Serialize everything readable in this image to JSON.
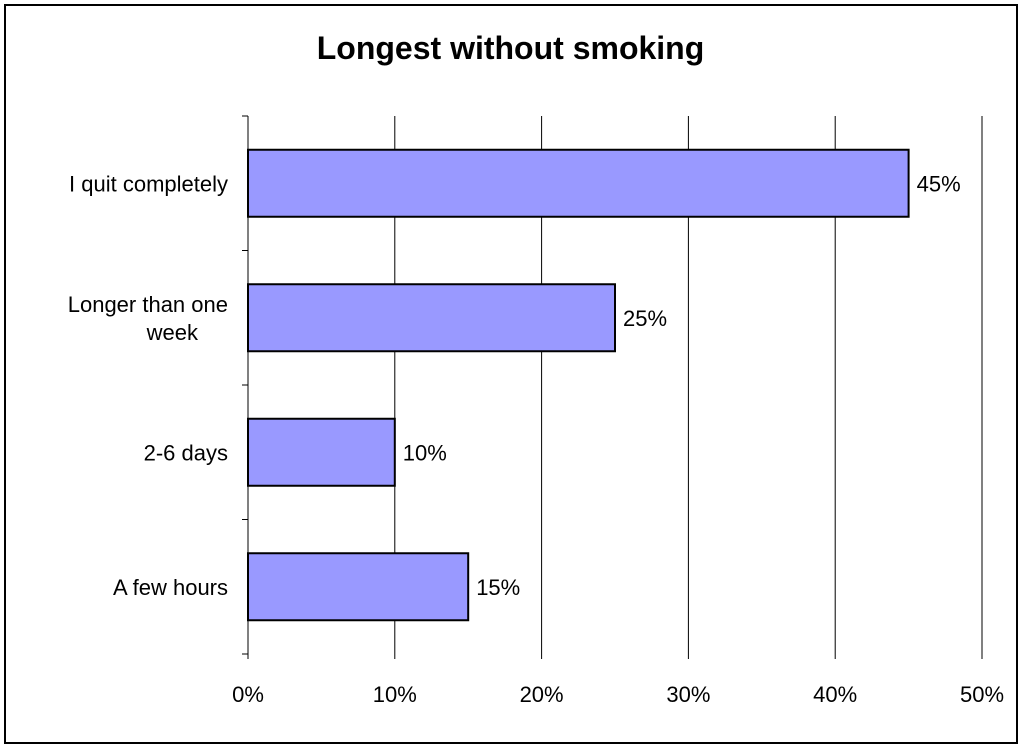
{
  "chart_data": {
    "type": "bar",
    "orientation": "horizontal",
    "title": "Longest without smoking",
    "categories": [
      "I quit completely",
      "Longer than one week",
      "2-6 days",
      "A few hours"
    ],
    "values": [
      45,
      25,
      10,
      15
    ],
    "data_labels": [
      "45%",
      "25%",
      "10%",
      "15%"
    ],
    "xlim": [
      0,
      50
    ],
    "x_ticks": [
      0,
      10,
      20,
      30,
      40,
      50
    ],
    "x_tick_labels": [
      "0%",
      "10%",
      "20%",
      "30%",
      "40%",
      "50%"
    ],
    "xlabel": "",
    "ylabel": "",
    "grid": "vertical",
    "legend": "none",
    "bar_color": "#9999ff",
    "bar_edge_color": "#000000"
  }
}
